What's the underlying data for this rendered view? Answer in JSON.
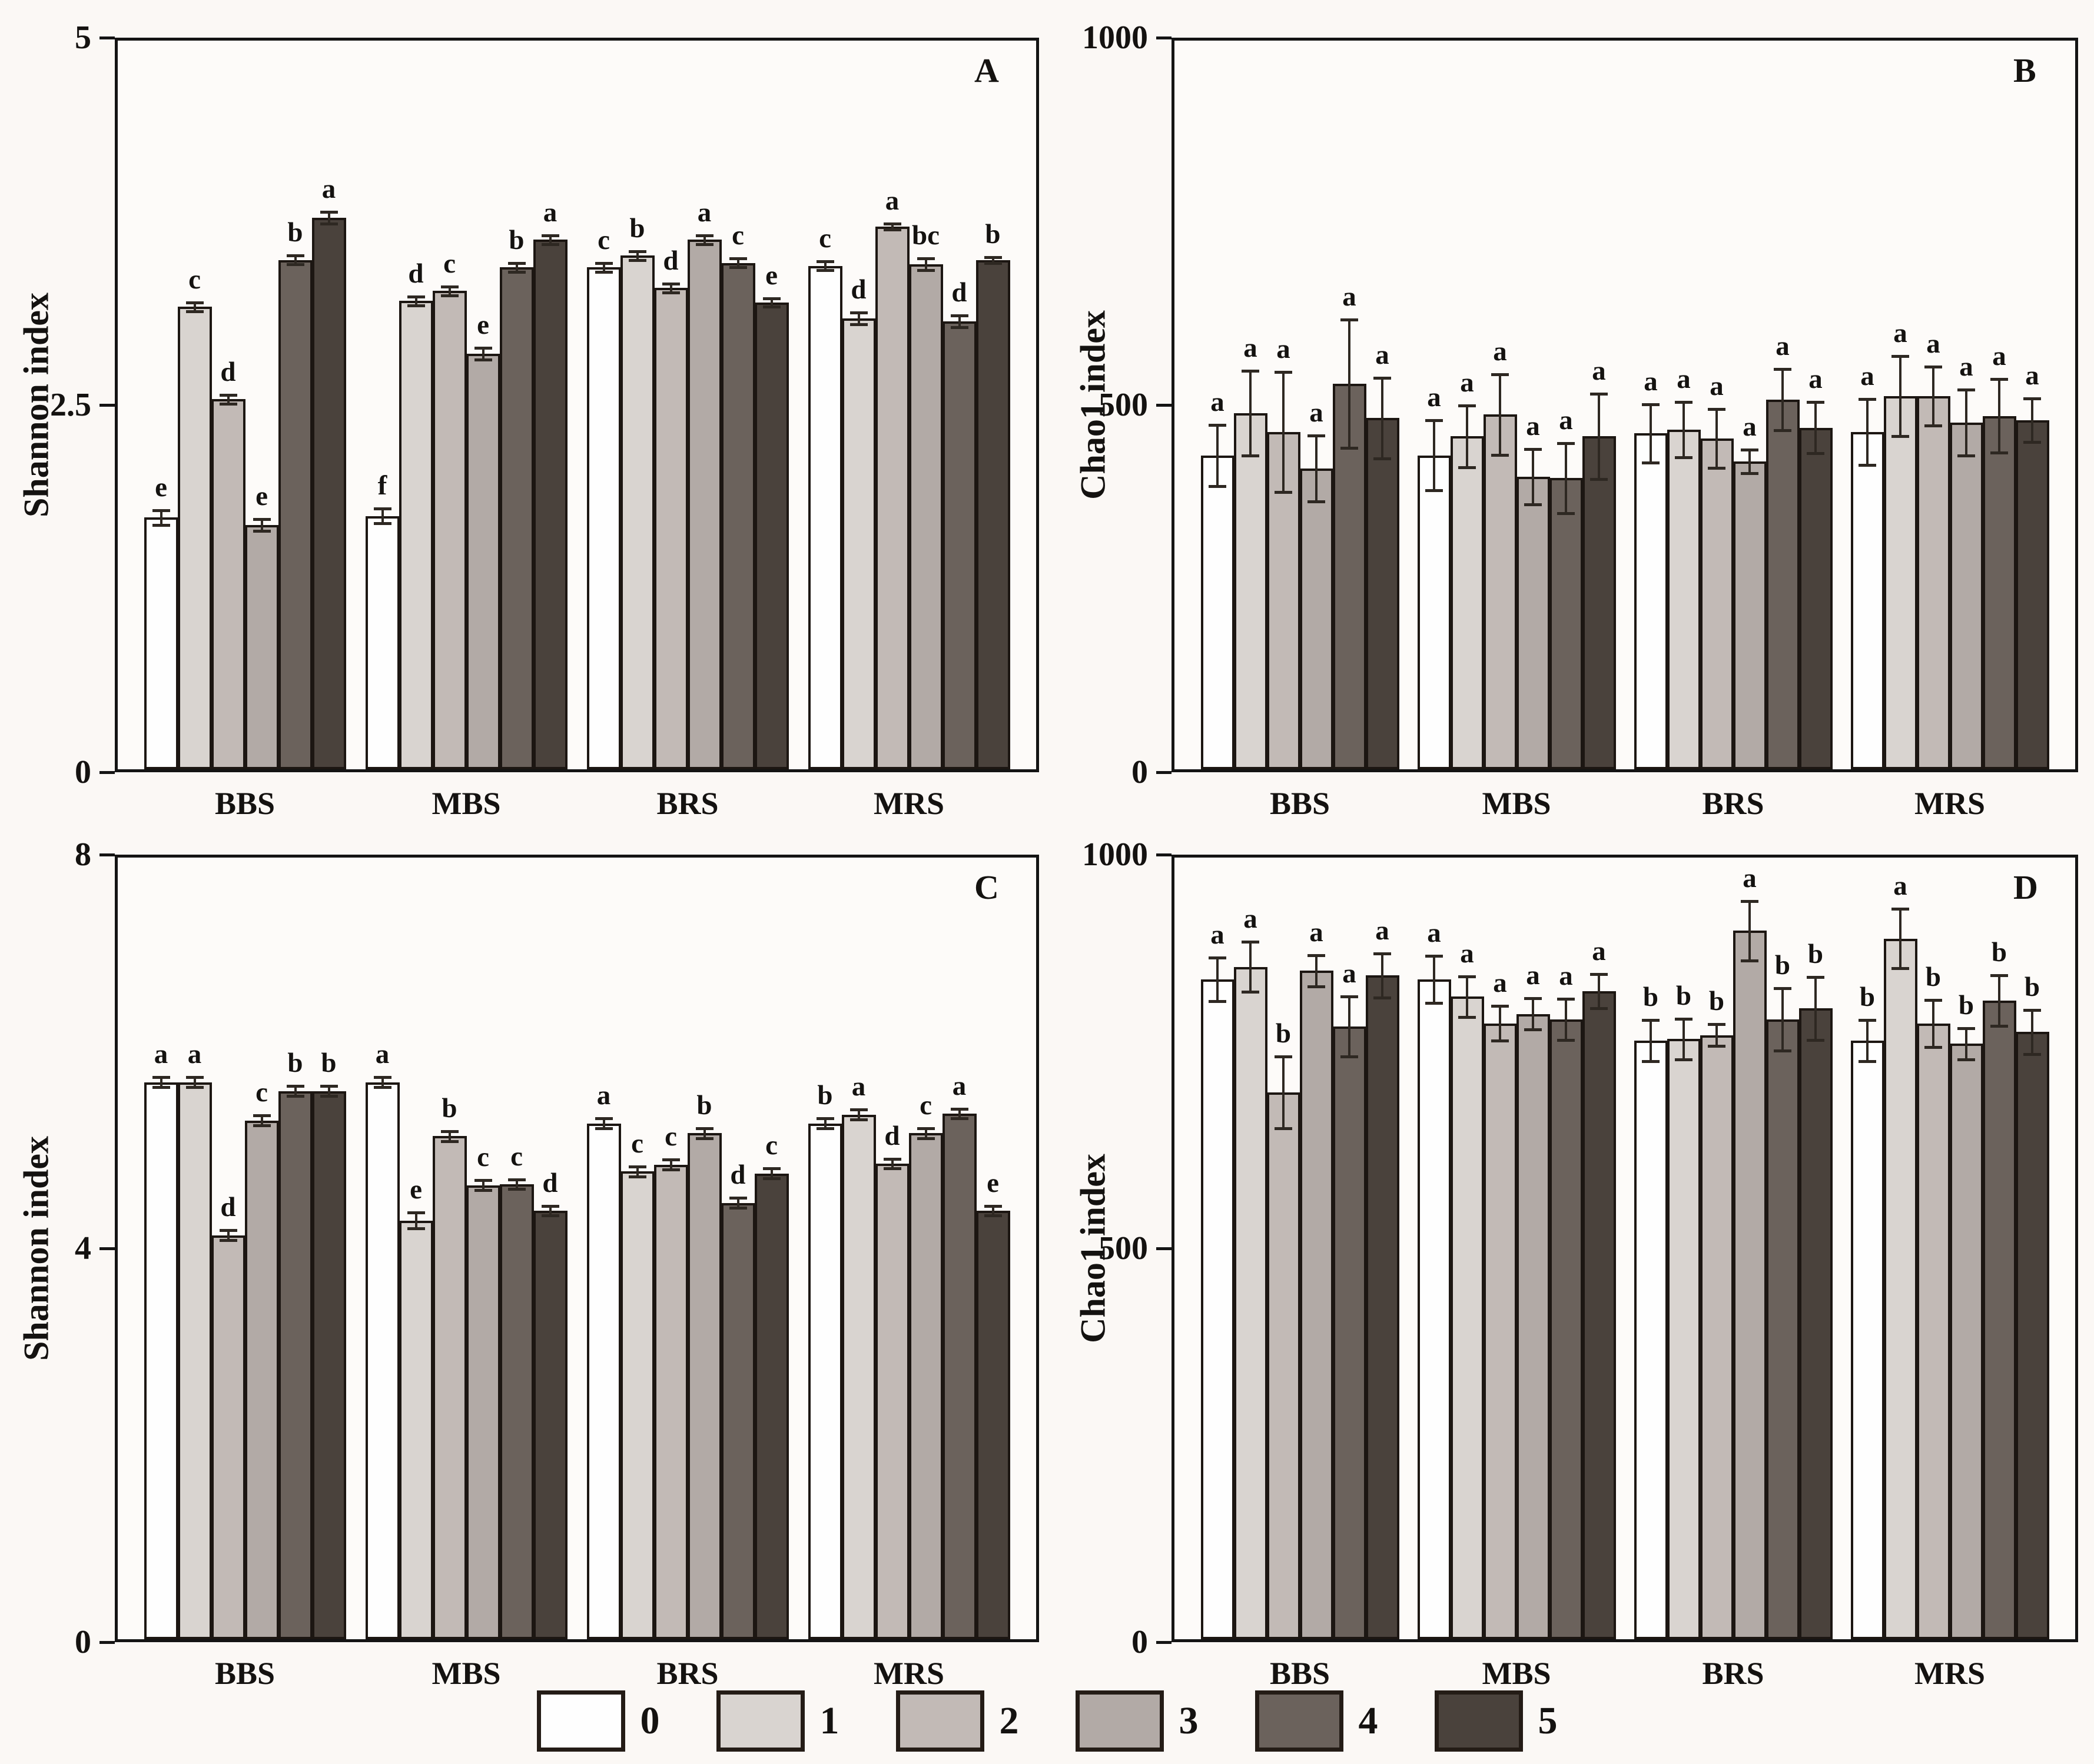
{
  "figure": {
    "background": "#fbf8f5"
  },
  "colors": {
    "bar_fills": [
      "#fefefe",
      "#d9d4d0",
      "#c2bab6",
      "#b2aaa6",
      "#6b625c",
      "#4a423c"
    ],
    "bar_stroke": "#1c1612",
    "frame": "#141414",
    "error_bar": "#2e2822",
    "text": "#141210"
  },
  "legend": {
    "items": [
      {
        "label": "0",
        "color": "#fefefe"
      },
      {
        "label": "1",
        "color": "#d9d4d0"
      },
      {
        "label": "2",
        "color": "#c2bab6"
      },
      {
        "label": "3",
        "color": "#b2aaa6"
      },
      {
        "label": "4",
        "color": "#6b625c"
      },
      {
        "label": "5",
        "color": "#4a423c"
      }
    ]
  },
  "categories": [
    "BBS",
    "MBS",
    "BRS",
    "MRS"
  ],
  "chart_data": [
    {
      "type": "bar",
      "panel_label": "A",
      "ylabel": "Shannon index",
      "ylim": [
        0,
        5
      ],
      "yticks": [
        0,
        2.5,
        5
      ],
      "ytick_labels": [
        "0",
        "2.5",
        "5"
      ],
      "legend_position": "bottom-shared",
      "grid": false,
      "categories": [
        "BBS",
        "MBS",
        "BRS",
        "MRS"
      ],
      "series_labels": [
        "0",
        "1",
        "2",
        "3",
        "4",
        "5"
      ],
      "groups": [
        {
          "category": "BBS",
          "values": [
            1.72,
            3.16,
            2.53,
            1.67,
            3.48,
            3.77
          ],
          "errors": [
            0.05,
            0.03,
            0.03,
            0.04,
            0.03,
            0.04
          ],
          "letters": [
            "e",
            "c",
            "d",
            "e",
            "b",
            "a"
          ]
        },
        {
          "category": "MBS",
          "values": [
            1.73,
            3.2,
            3.27,
            2.84,
            3.43,
            3.62
          ],
          "errors": [
            0.05,
            0.03,
            0.03,
            0.04,
            0.03,
            0.03
          ],
          "letters": [
            "f",
            "d",
            "c",
            "e",
            "b",
            "a"
          ]
        },
        {
          "category": "BRS",
          "values": [
            3.43,
            3.51,
            3.29,
            3.62,
            3.46,
            3.19
          ],
          "errors": [
            0.03,
            0.03,
            0.03,
            0.03,
            0.03,
            0.03
          ],
          "letters": [
            "c",
            "b",
            "d",
            "a",
            "c",
            "e"
          ]
        },
        {
          "category": "MRS",
          "values": [
            3.44,
            3.08,
            3.71,
            3.45,
            3.06,
            3.48
          ],
          "errors": [
            0.03,
            0.04,
            0.02,
            0.04,
            0.04,
            0.02
          ],
          "letters": [
            "c",
            "d",
            "a",
            "bc",
            "d",
            "b"
          ]
        }
      ]
    },
    {
      "type": "bar",
      "panel_label": "B",
      "ylabel": "Chao1 index",
      "ylim": [
        0,
        1000
      ],
      "yticks": [
        0,
        500,
        1000
      ],
      "ytick_labels": [
        "0",
        "500",
        "1000"
      ],
      "legend_position": "bottom-shared",
      "grid": false,
      "categories": [
        "BBS",
        "MBS",
        "BRS",
        "MRS"
      ],
      "series_labels": [
        "0",
        "1",
        "2",
        "3",
        "4",
        "5"
      ],
      "groups": [
        {
          "category": "BBS",
          "values": [
            429,
            487,
            461,
            411,
            527,
            480
          ],
          "errors": [
            42,
            58,
            82,
            45,
            88,
            55
          ],
          "letters": [
            "a",
            "a",
            "a",
            "a",
            "a",
            "a"
          ]
        },
        {
          "category": "MBS",
          "values": [
            429,
            455,
            485,
            400,
            398,
            455
          ],
          "errors": [
            48,
            42,
            55,
            38,
            48,
            58
          ],
          "letters": [
            "a",
            "a",
            "a",
            "a",
            "a",
            "a"
          ]
        },
        {
          "category": "BRS",
          "values": [
            459,
            464,
            452,
            421,
            505,
            467
          ],
          "errors": [
            40,
            38,
            40,
            16,
            42,
            35
          ],
          "letters": [
            "a",
            "a",
            "a",
            "a",
            "a",
            "a"
          ]
        },
        {
          "category": "MRS",
          "values": [
            461,
            510,
            510,
            474,
            483,
            477
          ],
          "errors": [
            45,
            55,
            40,
            45,
            50,
            30
          ],
          "letters": [
            "a",
            "a",
            "a",
            "a",
            "a",
            "a"
          ]
        }
      ]
    },
    {
      "type": "bar",
      "panel_label": "C",
      "ylabel": "Shannon index",
      "ylim": [
        0,
        8
      ],
      "yticks": [
        0,
        4,
        8
      ],
      "ytick_labels": [
        "0",
        "4",
        "8"
      ],
      "legend_position": "bottom-shared",
      "grid": false,
      "categories": [
        "BBS",
        "MBS",
        "BRS",
        "MRS"
      ],
      "series_labels": [
        "0",
        "1",
        "2",
        "3",
        "4",
        "5"
      ],
      "groups": [
        {
          "category": "BBS",
          "values": [
            5.68,
            5.68,
            4.12,
            5.29,
            5.59,
            5.59
          ],
          "errors": [
            0.05,
            0.05,
            0.05,
            0.05,
            0.05,
            0.05
          ],
          "letters": [
            "a",
            "a",
            "d",
            "c",
            "b",
            "b"
          ]
        },
        {
          "category": "MBS",
          "values": [
            5.68,
            4.27,
            5.13,
            4.63,
            4.64,
            4.37
          ],
          "errors": [
            0.05,
            0.08,
            0.05,
            0.05,
            0.05,
            0.05
          ],
          "letters": [
            "a",
            "e",
            "b",
            "c",
            "c",
            "d"
          ]
        },
        {
          "category": "BRS",
          "values": [
            5.26,
            4.77,
            4.84,
            5.16,
            4.45,
            4.75
          ],
          "errors": [
            0.05,
            0.05,
            0.05,
            0.05,
            0.05,
            0.05
          ],
          "letters": [
            "a",
            "c",
            "c",
            "b",
            "d",
            "c"
          ]
        },
        {
          "category": "MRS",
          "values": [
            5.26,
            5.35,
            4.85,
            5.16,
            5.36,
            4.37
          ],
          "errors": [
            0.05,
            0.05,
            0.05,
            0.05,
            0.05,
            0.05
          ],
          "letters": [
            "b",
            "a",
            "d",
            "c",
            "a",
            "e"
          ]
        }
      ]
    },
    {
      "type": "bar",
      "panel_label": "D",
      "ylabel": "Chao1 index",
      "ylim": [
        0,
        1000
      ],
      "yticks": [
        0,
        500,
        1000
      ],
      "ytick_labels": [
        "0",
        "500",
        "1000"
      ],
      "legend_position": "bottom-shared",
      "grid": false,
      "categories": [
        "BBS",
        "MBS",
        "BRS",
        "MRS"
      ],
      "series_labels": [
        "0",
        "1",
        "2",
        "3",
        "4",
        "5"
      ],
      "groups": [
        {
          "category": "BBS",
          "values": [
            841,
            857,
            697,
            852,
            781,
            846
          ],
          "errors": [
            28,
            32,
            46,
            20,
            38,
            28
          ],
          "letters": [
            "a",
            "a",
            "b",
            "a",
            "a",
            "a"
          ]
        },
        {
          "category": "MBS",
          "values": [
            841,
            819,
            785,
            797,
            790,
            826
          ],
          "errors": [
            30,
            26,
            22,
            20,
            26,
            22
          ],
          "letters": [
            "a",
            "a",
            "a",
            "a",
            "a",
            "a"
          ]
        },
        {
          "category": "BRS",
          "values": [
            763,
            765,
            770,
            903,
            790,
            804
          ],
          "errors": [
            26,
            26,
            14,
            38,
            40,
            40
          ],
          "letters": [
            "b",
            "b",
            "b",
            "a",
            "b",
            "b"
          ]
        },
        {
          "category": "MRS",
          "values": [
            763,
            893,
            785,
            759,
            814,
            774
          ],
          "errors": [
            26,
            38,
            30,
            20,
            32,
            28
          ],
          "letters": [
            "b",
            "a",
            "b",
            "b",
            "b",
            "b"
          ]
        }
      ]
    }
  ]
}
